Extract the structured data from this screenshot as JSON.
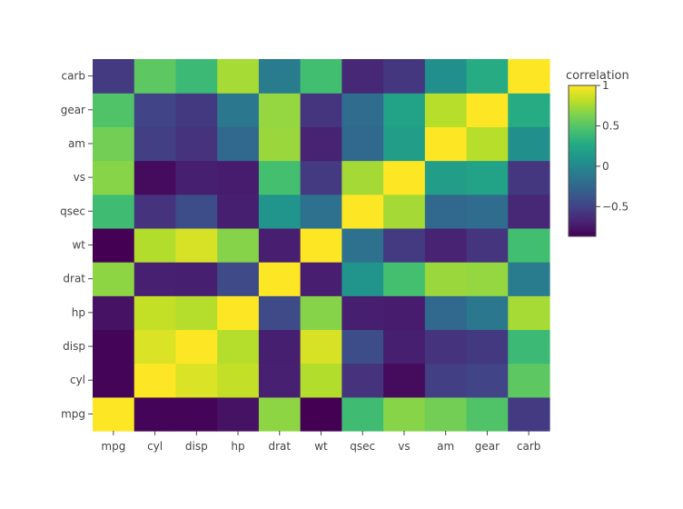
{
  "chart_data": {
    "type": "heatmap",
    "title": "",
    "xlabel": "",
    "ylabel": "",
    "x": [
      "mpg",
      "cyl",
      "disp",
      "hp",
      "drat",
      "wt",
      "qsec",
      "vs",
      "am",
      "gear",
      "carb"
    ],
    "y": [
      "mpg",
      "cyl",
      "disp",
      "hp",
      "drat",
      "wt",
      "qsec",
      "vs",
      "am",
      "gear",
      "carb"
    ],
    "z": [
      [
        1.0,
        -0.852,
        -0.848,
        -0.776,
        0.681,
        -0.868,
        0.419,
        0.664,
        0.6,
        0.48,
        -0.551
      ],
      [
        -0.852,
        1.0,
        0.902,
        0.832,
        -0.7,
        0.782,
        -0.591,
        -0.811,
        -0.523,
        -0.493,
        0.527
      ],
      [
        -0.848,
        0.902,
        1.0,
        0.791,
        -0.71,
        0.888,
        -0.434,
        -0.71,
        -0.591,
        -0.556,
        0.395
      ],
      [
        -0.776,
        0.832,
        0.791,
        1.0,
        -0.449,
        0.659,
        -0.708,
        -0.723,
        -0.243,
        -0.126,
        0.75
      ],
      [
        0.681,
        -0.7,
        -0.71,
        -0.449,
        1.0,
        -0.712,
        0.091,
        0.44,
        0.713,
        0.7,
        -0.091
      ],
      [
        -0.868,
        0.782,
        0.888,
        0.659,
        -0.712,
        1.0,
        -0.175,
        -0.555,
        -0.692,
        -0.583,
        0.428
      ],
      [
        0.419,
        -0.591,
        -0.434,
        -0.708,
        0.091,
        -0.175,
        1.0,
        0.745,
        -0.23,
        -0.213,
        -0.656
      ],
      [
        0.664,
        -0.811,
        -0.71,
        -0.723,
        0.44,
        -0.555,
        0.745,
        1.0,
        0.168,
        0.206,
        -0.57
      ],
      [
        0.6,
        -0.523,
        -0.591,
        -0.243,
        0.713,
        -0.692,
        -0.23,
        0.168,
        1.0,
        0.794,
        0.058
      ],
      [
        0.48,
        -0.493,
        -0.556,
        -0.126,
        0.7,
        -0.583,
        -0.213,
        0.206,
        0.794,
        1.0,
        0.274
      ],
      [
        -0.551,
        0.527,
        0.395,
        0.75,
        -0.091,
        0.428,
        -0.656,
        -0.57,
        0.058,
        0.274,
        1.0
      ]
    ],
    "zmin": -0.868,
    "zmax": 1.0,
    "colorscale": "viridis",
    "colorbar": {
      "title": "correlation",
      "ticks": [
        -0.5,
        0,
        0.5,
        1
      ],
      "tick_labels": [
        "−0.5",
        "0",
        "0.5",
        "1"
      ]
    },
    "grid": false,
    "legend": "none"
  }
}
